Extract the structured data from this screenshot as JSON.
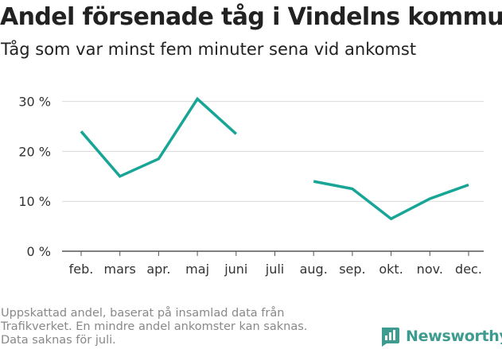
{
  "title": "Andel försenade tåg i Vindelns kommun",
  "subtitle": "Tåg som var minst fem minuter sena vid ankomst",
  "footnote": [
    "Uppskattad andel, baserat på insamlad data från",
    "Trafikverket. En mindre andel ankomster kan saknas.",
    "Data saknas för juli."
  ],
  "brand": {
    "name": "Newsworthy",
    "icon": "newsworthy-logo-icon"
  },
  "colors": {
    "line": "#17a596",
    "grid": "#d9d9d9",
    "text": "#222222",
    "muted": "#888888",
    "brand": "#3d9b8f"
  },
  "chart_data": {
    "type": "line",
    "categories": [
      "feb.",
      "mars",
      "apr.",
      "maj",
      "juni",
      "juli",
      "aug.",
      "sep.",
      "okt.",
      "nov.",
      "dec."
    ],
    "series": [
      {
        "values": [
          24.0,
          15.0,
          18.5,
          30.5,
          23.5,
          null,
          14.0,
          12.5,
          6.5,
          10.5,
          13.3
        ]
      }
    ],
    "yticks": [
      0,
      10,
      20,
      30
    ],
    "ytick_labels": [
      "0 %",
      "10 %",
      "20 %",
      "30 %"
    ],
    "ylim": [
      0,
      32
    ],
    "grid": true,
    "xlabel": "",
    "ylabel": ""
  }
}
